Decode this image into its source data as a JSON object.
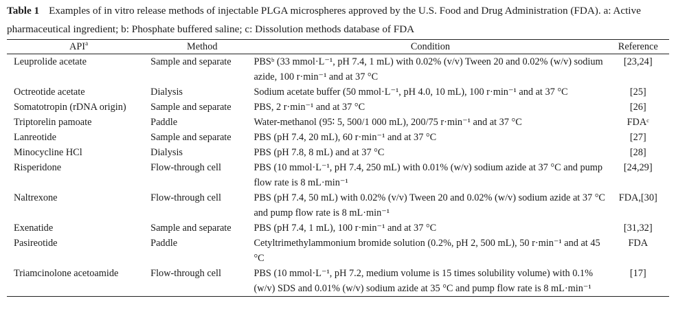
{
  "caption": {
    "label": "Table 1",
    "text": "Examples of in vitro release methods of injectable PLGA microspheres approved by the U.S. Food and Drug Administration (FDA). a: Active pharmaceutical ingredient; b: Phosphate buffered saline; c: Dissolution methods database of FDA"
  },
  "headers": {
    "api": "API",
    "api_sup": "a",
    "method": "Method",
    "condition": "Condition",
    "reference": "Reference"
  },
  "rows": [
    {
      "api": "Leuprolide acetate",
      "method": "Sample and separate",
      "condition": "PBSᵇ (33 mmol·L⁻¹, pH 7.4, 1 mL) with 0.02% (v/v) Tween 20 and 0.02% (w/v) sodium azide, 100 r·min⁻¹ and at 37 °C",
      "reference": "[23,24]"
    },
    {
      "api": "Octreotide acetate",
      "method": "Dialysis",
      "condition": "Sodium acetate buffer (50 mmol·L⁻¹, pH 4.0, 10 mL), 100 r·min⁻¹ and at 37 °C",
      "reference": "[25]"
    },
    {
      "api": "Somatotropin (rDNA origin)",
      "method": "Sample and separate",
      "condition": "PBS, 2 r·min⁻¹ and at 37 °C",
      "reference": "[26]"
    },
    {
      "api": "Triptorelin pamoate",
      "method": "Paddle",
      "condition": "Water-methanol (95∶ 5, 500/1 000 mL), 200/75 r·min⁻¹ and at 37 °C",
      "reference": "FDAᶜ"
    },
    {
      "api": "Lanreotide",
      "method": "Sample and separate",
      "condition": "PBS (pH 7.4, 20 mL), 60 r·min⁻¹ and at 37 °C",
      "reference": "[27]"
    },
    {
      "api": "Minocycline HCl",
      "method": "Dialysis",
      "condition": "PBS (pH 7.8, 8 mL) and at 37 °C",
      "reference": "[28]"
    },
    {
      "api": "Risperidone",
      "method": "Flow-through cell",
      "condition": "PBS (10 mmol·L⁻¹, pH 7.4, 250 mL) with 0.01% (w/v) sodium azide at 37 °C and pump flow rate is 8 mL·min⁻¹",
      "reference": "[24,29]"
    },
    {
      "api": "Naltrexone",
      "method": "Flow-through cell",
      "condition": "PBS (pH 7.4, 50 mL) with 0.02% (v/v) Tween 20 and 0.02% (w/v) sodium azide at 37 °C and pump flow rate is 8 mL·min⁻¹",
      "reference": "FDA,[30]"
    },
    {
      "api": "Exenatide",
      "method": "Sample and separate",
      "condition": "PBS (pH 7.4, 1 mL), 100 r·min⁻¹ and at 37 °C",
      "reference": "[31,32]"
    },
    {
      "api": "Pasireotide",
      "method": "Paddle",
      "condition": "Cetyltrimethylammonium bromide solution (0.2%, pH 2, 500 mL), 50 r·min⁻¹ and at 45 °C",
      "reference": "FDA"
    },
    {
      "api": "Triamcinolone acetoamide",
      "method": "Flow-through cell",
      "condition": "PBS (10 mmol·L⁻¹, pH 7.2, medium volume is 15 times solubility volume) with 0.1% (w/v) SDS and 0.01% (w/v) sodium azide at 35 °C and pump flow rate is 8 mL·min⁻¹",
      "reference": "[17]"
    }
  ]
}
